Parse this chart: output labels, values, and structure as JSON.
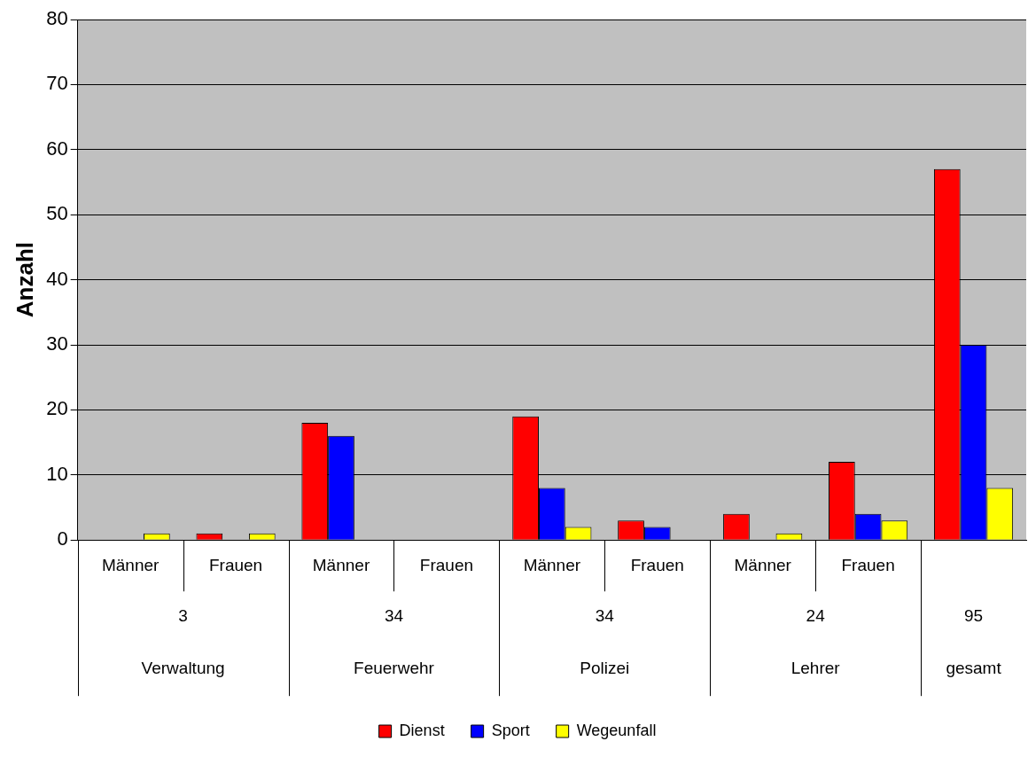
{
  "chart_data": {
    "type": "bar",
    "ylabel": "Anzahl",
    "categories": [
      "Männer",
      "Frauen",
      "Männer",
      "Frauen",
      "Männer",
      "Frauen",
      "Männer",
      "Frauen",
      null
    ],
    "series": [
      {
        "name": "Dienst",
        "color": "#ff0000",
        "values": [
          0,
          1,
          18,
          0,
          19,
          3,
          4,
          12,
          57
        ]
      },
      {
        "name": "Sport",
        "color": "#0000ff",
        "values": [
          0,
          0,
          16,
          0,
          8,
          2,
          0,
          4,
          30
        ]
      },
      {
        "name": "Wegeunfall",
        "color": "#ffff00",
        "values": [
          1,
          1,
          0,
          0,
          2,
          0,
          1,
          3,
          8
        ]
      }
    ],
    "ylim": [
      0,
      80
    ],
    "yticks": [
      0,
      10,
      20,
      30,
      40,
      50,
      60,
      70,
      80
    ],
    "grid": "y",
    "legend": "bottom",
    "annotations": [
      "3",
      "Verwaltung",
      "34",
      "Feuerwehr",
      "34",
      "Polizei",
      "24",
      "Lehrer",
      "95",
      "gesamt"
    ]
  }
}
